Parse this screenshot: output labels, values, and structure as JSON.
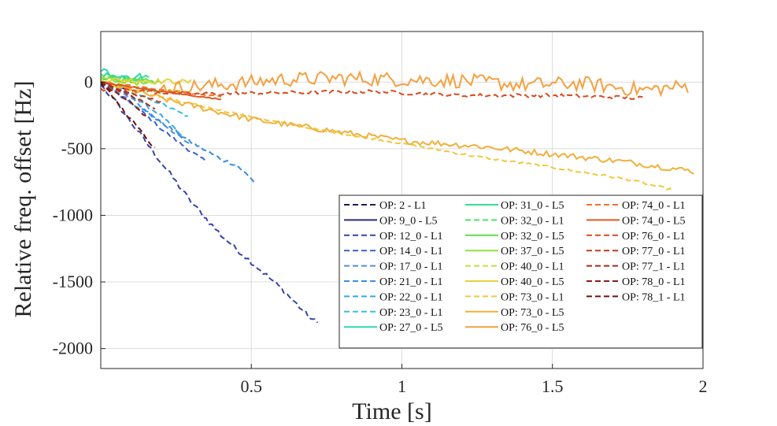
{
  "chart_data": {
    "type": "line",
    "title": "",
    "xlabel": "Time [s]",
    "ylabel": "Relative freq. offset [Hz]",
    "xlim": [
      0,
      2.0
    ],
    "ylim": [
      -2150,
      380
    ],
    "grid": true,
    "legend_location": "lower-right",
    "xticks": [
      0.5,
      1,
      1.5,
      2
    ],
    "xtick_labels": [
      "0.5",
      "1",
      "1.5",
      "2"
    ],
    "yticks": [
      0,
      -500,
      -1000,
      -1500,
      -2000
    ],
    "ytick_labels": [
      "0",
      "-500",
      "-1000",
      "-1500",
      "-2000"
    ],
    "series": [
      {
        "name": "OP: 2 - L1",
        "color": "#1e1b5a",
        "dash": true,
        "noise": 6,
        "x": [
          0,
          0.05
        ],
        "y": [
          0,
          -60
        ]
      },
      {
        "name": "OP: 9_0 - L5",
        "color": "#2b2c7c",
        "dash": false,
        "noise": 3,
        "x": [
          0,
          0.08
        ],
        "y": [
          0,
          -50
        ]
      },
      {
        "name": "OP: 12_0 - L1",
        "color": "#3545a8",
        "dash": true,
        "noise": 20,
        "x": [
          0,
          0.05,
          0.1,
          0.2,
          0.3,
          0.4,
          0.5,
          0.6,
          0.7,
          0.72
        ],
        "y": [
          -20,
          -150,
          -300,
          -600,
          -900,
          -1150,
          -1350,
          -1550,
          -1780,
          -1810
        ]
      },
      {
        "name": "OP: 14_0 - L1",
        "color": "#3a5fcd",
        "dash": true,
        "noise": 12,
        "x": [
          0,
          0.1,
          0.2,
          0.3,
          0.35
        ],
        "y": [
          0,
          -150,
          -350,
          -520,
          -600
        ]
      },
      {
        "name": "OP: 17_0 - L1",
        "color": "#4f8fe6",
        "dash": true,
        "noise": 10,
        "x": [
          0,
          0.1,
          0.2,
          0.3
        ],
        "y": [
          0,
          -120,
          -300,
          -480
        ]
      },
      {
        "name": "OP: 21_0 - L1",
        "color": "#3a8fe0",
        "dash": true,
        "noise": 14,
        "x": [
          0,
          0.1,
          0.2,
          0.3,
          0.4,
          0.45,
          0.51
        ],
        "y": [
          0,
          -150,
          -300,
          -450,
          -580,
          -620,
          -750
        ]
      },
      {
        "name": "OP: 22_0 - L1",
        "color": "#35a7e8",
        "dash": true,
        "noise": 10,
        "x": [
          0,
          0.1,
          0.2,
          0.28
        ],
        "y": [
          0,
          -100,
          -250,
          -430
        ]
      },
      {
        "name": "OP: 23_0 - L1",
        "color": "#36c0e0",
        "dash": true,
        "noise": 10,
        "x": [
          0,
          0.1,
          0.2,
          0.29
        ],
        "y": [
          0,
          -80,
          -160,
          -260
        ]
      },
      {
        "name": "OP: 27_0 - L5",
        "color": "#2ed8b0",
        "dash": false,
        "noise": 35,
        "x": [
          0,
          0.05,
          0.1,
          0.15
        ],
        "y": [
          80,
          60,
          40,
          30
        ]
      },
      {
        "name": "OP: 31_0 - L5",
        "color": "#33e08c",
        "dash": false,
        "noise": 25,
        "x": [
          0,
          0.1,
          0.16
        ],
        "y": [
          60,
          20,
          40
        ]
      },
      {
        "name": "OP: 32_0 - L1",
        "color": "#4fe070",
        "dash": true,
        "noise": 8,
        "x": [
          0,
          0.1,
          0.2
        ],
        "y": [
          0,
          -40,
          -80
        ]
      },
      {
        "name": "OP: 32_0 - L5",
        "color": "#5fe04a",
        "dash": false,
        "noise": 20,
        "x": [
          0,
          0.1,
          0.2
        ],
        "y": [
          40,
          10,
          0
        ]
      },
      {
        "name": "OP: 37_0 - L5",
        "color": "#8fe03a",
        "dash": false,
        "noise": 18,
        "x": [
          0,
          0.1,
          0.18
        ],
        "y": [
          30,
          0,
          -20
        ]
      },
      {
        "name": "OP: 40_0 - L1",
        "color": "#c4e040",
        "dash": true,
        "noise": 8,
        "x": [
          0,
          0.15,
          0.3
        ],
        "y": [
          0,
          -40,
          -80
        ]
      },
      {
        "name": "OP: 40_0 - L5",
        "color": "#e4d43c",
        "dash": false,
        "noise": 20,
        "x": [
          0,
          0.15,
          0.3
        ],
        "y": [
          20,
          10,
          0
        ]
      },
      {
        "name": "OP: 73_0 - L1",
        "color": "#f0c83c",
        "dash": true,
        "noise": 8,
        "x": [
          0,
          0.25,
          0.5,
          0.75,
          1.0,
          1.25,
          1.5,
          1.75,
          1.9
        ],
        "y": [
          0,
          -140,
          -260,
          -370,
          -460,
          -560,
          -640,
          -730,
          -810
        ]
      },
      {
        "name": "OP: 73_0 - L5",
        "color": "#f2b03a",
        "dash": false,
        "noise": 22,
        "x": [
          0,
          0.25,
          0.5,
          0.75,
          1.0,
          1.25,
          1.5,
          1.75,
          1.97
        ],
        "y": [
          0,
          -150,
          -280,
          -360,
          -440,
          -480,
          -540,
          -600,
          -670
        ]
      },
      {
        "name": "OP: 76_0 - L5",
        "color": "#f5a040",
        "dash": false,
        "noise": 55,
        "x": [
          0.2,
          0.4,
          0.6,
          0.8,
          1.0,
          1.2,
          1.4,
          1.6,
          1.8,
          1.95
        ],
        "y": [
          -50,
          -20,
          20,
          30,
          20,
          10,
          -20,
          -10,
          -60,
          -30
        ]
      },
      {
        "name": "OP: 74_0 - L1",
        "color": "#f07030",
        "dash": true,
        "noise": 8,
        "x": [
          0,
          0.2,
          0.4
        ],
        "y": [
          0,
          -60,
          -110
        ]
      },
      {
        "name": "OP: 74_0 - L5",
        "color": "#e05a22",
        "dash": false,
        "noise": 4,
        "x": [
          0,
          0.2,
          0.4
        ],
        "y": [
          0,
          -70,
          -130
        ]
      },
      {
        "name": "OP: 76_0 - L1",
        "color": "#d84a20",
        "dash": true,
        "noise": 14,
        "x": [
          0,
          0.3,
          0.6,
          0.9,
          1.2,
          1.5,
          1.8
        ],
        "y": [
          -50,
          -90,
          -80,
          -70,
          -100,
          -100,
          -120
        ]
      },
      {
        "name": "OP: 77_0 - L1",
        "color": "#c03a1c",
        "dash": true,
        "noise": 8,
        "x": [
          0,
          0.1,
          0.2
        ],
        "y": [
          0,
          -80,
          -150
        ]
      },
      {
        "name": "OP: 77_1 - L1",
        "color": "#a82a1a",
        "dash": true,
        "noise": 8,
        "x": [
          0,
          0.1,
          0.18
        ],
        "y": [
          0,
          -100,
          -200
        ]
      },
      {
        "name": "OP: 78_0 - L1",
        "color": "#8c1c14",
        "dash": true,
        "noise": 10,
        "x": [
          0,
          0.1,
          0.15
        ],
        "y": [
          0,
          -150,
          -260
        ]
      },
      {
        "name": "OP: 78_1 - L1",
        "color": "#6e1010",
        "dash": true,
        "noise": 12,
        "x": [
          0,
          0.1,
          0.18
        ],
        "y": [
          0,
          -280,
          -500
        ]
      }
    ]
  }
}
